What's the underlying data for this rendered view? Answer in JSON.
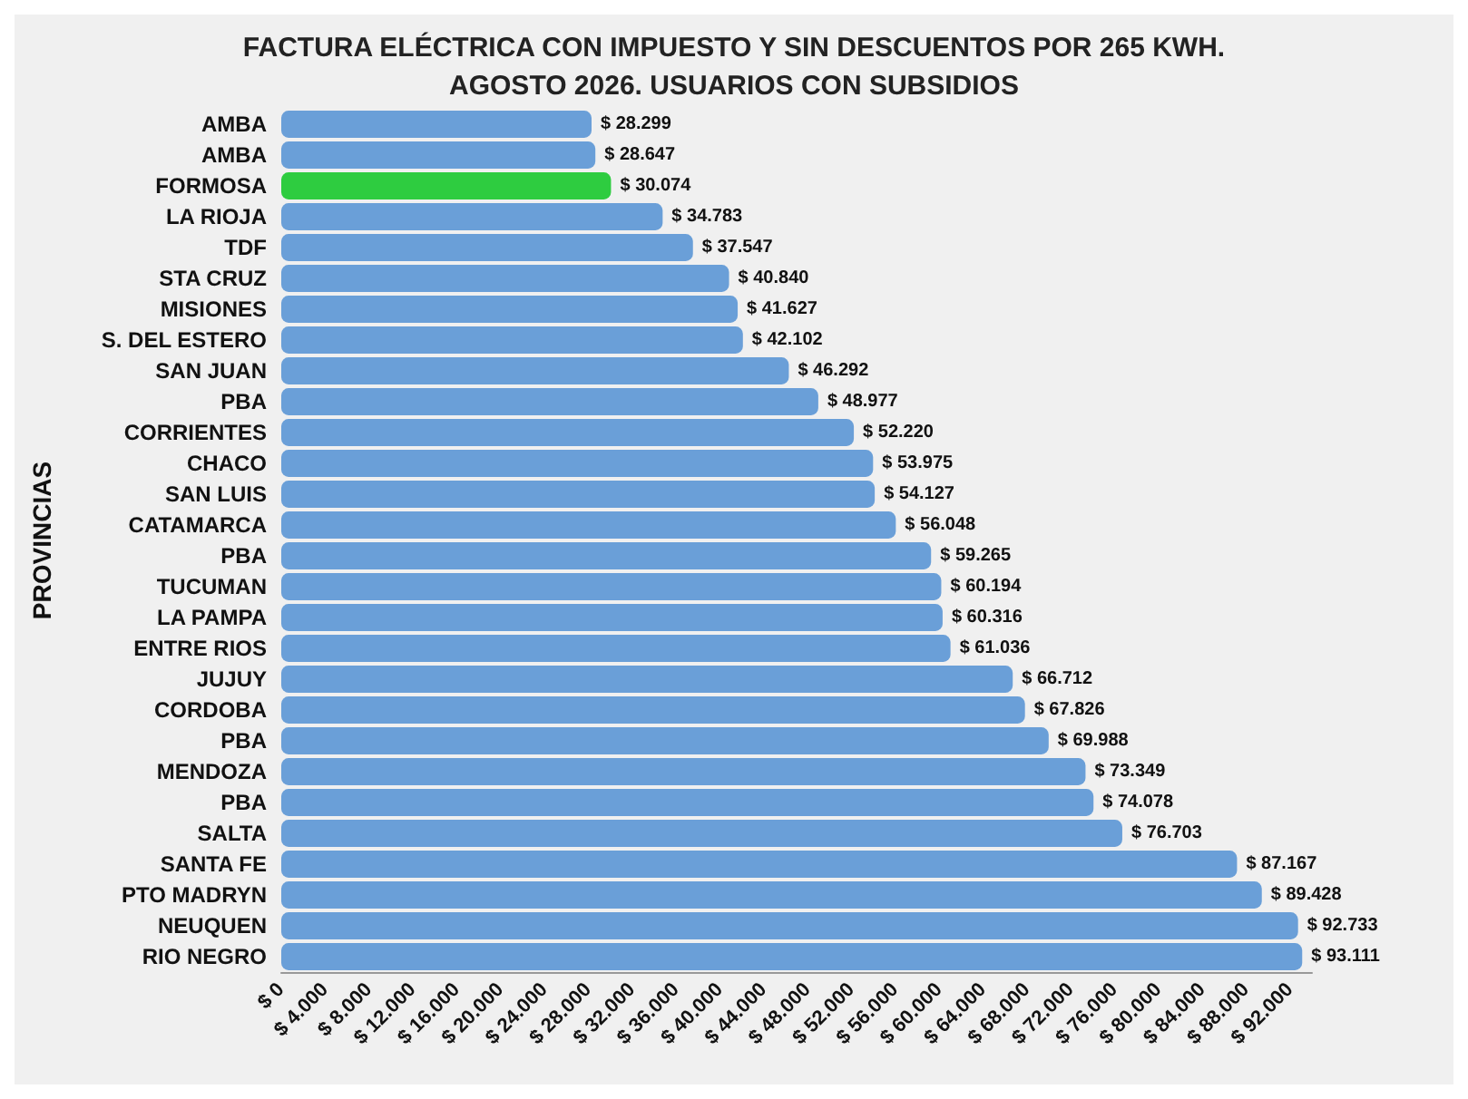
{
  "chart_data": {
    "type": "bar",
    "orientation": "horizontal",
    "title": "FACTURA ELÉCTRICA CON IMPUESTO Y SIN DESCUENTOS POR 265 KWH.",
    "subtitle": "AGOSTO 2026. USUARIOS CON SUBSIDIOS",
    "ylabel": "PROVINCIAS",
    "categories": [
      "AMBA",
      "AMBA",
      "FORMOSA",
      "LA RIOJA",
      "TDF",
      "STA CRUZ",
      "MISIONES",
      "S. DEL ESTERO",
      "SAN JUAN",
      "PBA",
      "CORRIENTES",
      "CHACO",
      "SAN LUIS",
      "CATAMARCA",
      "PBA",
      "TUCUMAN",
      "LA PAMPA",
      "ENTRE RIOS",
      "JUJUY",
      "CORDOBA",
      "PBA",
      "MENDOZA",
      "PBA",
      "SALTA",
      "SANTA FE",
      "PTO MADRYN",
      "NEUQUEN",
      "RIO NEGRO"
    ],
    "values": [
      28299,
      28647,
      30074,
      34783,
      37547,
      40840,
      41627,
      42102,
      46292,
      48977,
      52220,
      53975,
      54127,
      56048,
      59265,
      60194,
      60316,
      61036,
      66712,
      67826,
      69988,
      73349,
      74078,
      76703,
      87167,
      89428,
      92733,
      93111
    ],
    "value_labels": [
      "$ 28.299",
      "$ 28.647",
      "$ 30.074",
      "$ 34.783",
      "$ 37.547",
      "$ 40.840",
      "$ 41.627",
      "$ 42.102",
      "$ 46.292",
      "$ 48.977",
      "$ 52.220",
      "$ 53.975",
      "$ 54.127",
      "$ 56.048",
      "$ 59.265",
      "$ 60.194",
      "$ 60.316",
      "$ 61.036",
      "$ 66.712",
      "$ 67.826",
      "$ 69.988",
      "$ 73.349",
      "$ 74.078",
      "$ 76.703",
      "$ 87.167",
      "$ 89.428",
      "$ 92.733",
      "$ 93.111"
    ],
    "colors": [
      "#6a9fd8",
      "#6a9fd8",
      "#2ecc40",
      "#6a9fd8",
      "#6a9fd8",
      "#6a9fd8",
      "#6a9fd8",
      "#6a9fd8",
      "#6a9fd8",
      "#6a9fd8",
      "#6a9fd8",
      "#6a9fd8",
      "#6a9fd8",
      "#6a9fd8",
      "#6a9fd8",
      "#6a9fd8",
      "#6a9fd8",
      "#6a9fd8",
      "#6a9fd8",
      "#6a9fd8",
      "#6a9fd8",
      "#6a9fd8",
      "#6a9fd8",
      "#6a9fd8",
      "#6a9fd8",
      "#6a9fd8",
      "#6a9fd8",
      "#6a9fd8"
    ],
    "xlim": [
      0,
      94000
    ],
    "xticks": [
      {
        "value": 0,
        "label": "$ 0"
      },
      {
        "value": 4000,
        "label": "$ 4.000"
      },
      {
        "value": 8000,
        "label": "$ 8.000"
      },
      {
        "value": 12000,
        "label": "$ 12.000"
      },
      {
        "value": 16000,
        "label": "$ 16.000"
      },
      {
        "value": 20000,
        "label": "$ 20.000"
      },
      {
        "value": 24000,
        "label": "$ 24.000"
      },
      {
        "value": 28000,
        "label": "$ 28.000"
      },
      {
        "value": 32000,
        "label": "$ 32.000"
      },
      {
        "value": 36000,
        "label": "$ 36.000"
      },
      {
        "value": 40000,
        "label": "$ 40.000"
      },
      {
        "value": 44000,
        "label": "$ 44.000"
      },
      {
        "value": 48000,
        "label": "$ 48.000"
      },
      {
        "value": 52000,
        "label": "$ 52.000"
      },
      {
        "value": 56000,
        "label": "$ 56.000"
      },
      {
        "value": 60000,
        "label": "$ 60.000"
      },
      {
        "value": 64000,
        "label": "$ 64.000"
      },
      {
        "value": 68000,
        "label": "$ 68.000"
      },
      {
        "value": 72000,
        "label": "$ 72.000"
      },
      {
        "value": 76000,
        "label": "$ 76.000"
      },
      {
        "value": 80000,
        "label": "$ 80.000"
      },
      {
        "value": 84000,
        "label": "$ 84.000"
      },
      {
        "value": 88000,
        "label": "$ 88.000"
      },
      {
        "value": 92000,
        "label": "$ 92.000"
      }
    ],
    "grid": false
  }
}
